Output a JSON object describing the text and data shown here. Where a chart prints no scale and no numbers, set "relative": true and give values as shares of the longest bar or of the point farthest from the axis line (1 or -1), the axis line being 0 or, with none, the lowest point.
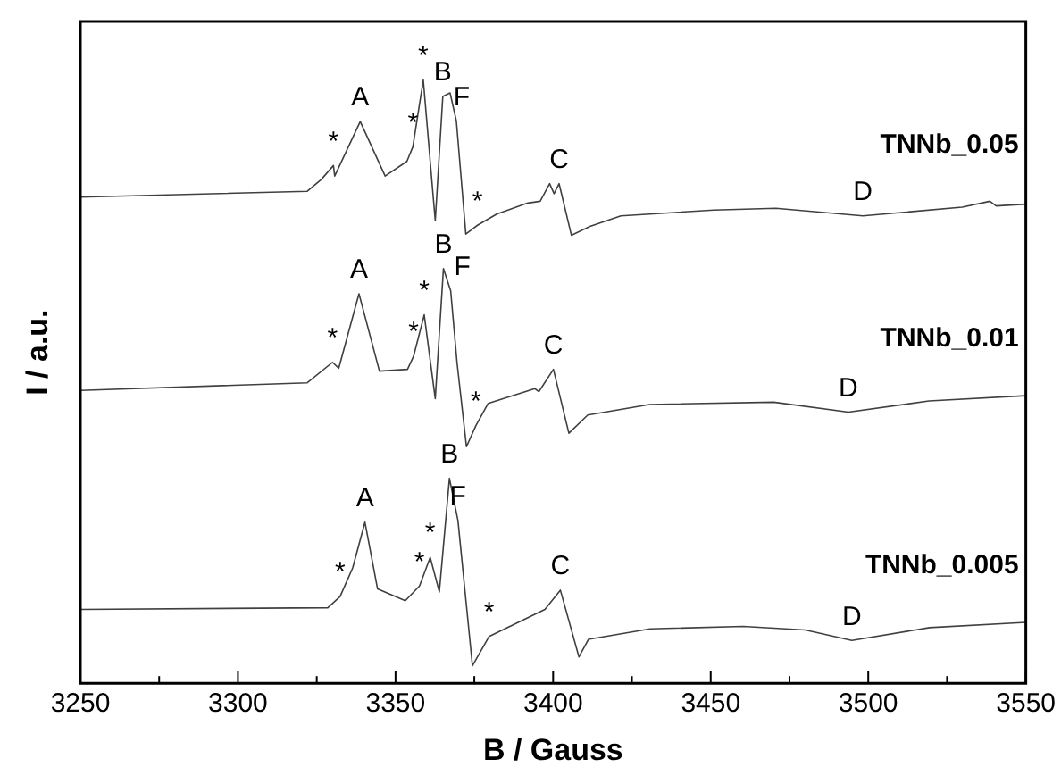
{
  "chart_data": {
    "type": "line",
    "relative": true,
    "xlabel": "B / Gauss",
    "ylabel": "I / a.u.",
    "xlim": [
      3250,
      3550
    ],
    "xticks": [
      3250,
      {
        "value": 3275,
        "label": null
      },
      3300,
      {
        "value": 3325,
        "label": null
      },
      3350,
      {
        "value": 3375,
        "label": null
      },
      3400,
      {
        "value": 3425,
        "label": null
      },
      3450,
      {
        "value": 3475,
        "label": null
      },
      3500,
      {
        "value": 3525,
        "label": null
      },
      3550
    ],
    "grid": false,
    "legend": false,
    "marker": "none",
    "line_style": "solid",
    "series": [
      {
        "name": "TNNb_0.05",
        "color": "#404040",
        "x": [
          3250,
          3322,
          3326.4,
          3330.3,
          3330.7,
          3338.8,
          3346.7,
          3353.6,
          3355.5,
          3358.8,
          3362.6,
          3365,
          3367.3,
          3369.3,
          3372.3,
          3376,
          3382.1,
          3392,
          3395.9,
          3398.9,
          3400.3,
          3401.9,
          3405.8,
          3411.7,
          3421.5,
          3451,
          3470.7,
          3498.3,
          3529.8,
          3538.6,
          3540.6,
          3550
        ],
        "values": [
          0.8,
          0.81,
          0.83,
          0.854,
          0.836,
          0.929,
          0.836,
          0.861,
          0.886,
          1.0,
          0.76,
          0.972,
          0.978,
          0.93,
          0.737,
          0.752,
          0.771,
          0.79,
          0.793,
          0.823,
          0.806,
          0.823,
          0.735,
          0.75,
          0.768,
          0.778,
          0.781,
          0.768,
          0.783,
          0.793,
          0.785,
          0.788
        ]
      },
      {
        "name": "TNNb_0.01",
        "color": "#404040",
        "x": [
          3250,
          3322,
          3330,
          3332,
          3338.4,
          3344.9,
          3353.8,
          3355.7,
          3359.1,
          3362.6,
          3365.2,
          3367.5,
          3369.5,
          3372.5,
          3375.5,
          3379.4,
          3394.2,
          3395.5,
          3400.1,
          3405,
          3411,
          3430.6,
          3470,
          3493.7,
          3519.3,
          3550
        ],
        "values": [
          0.47,
          0.483,
          0.518,
          0.508,
          0.635,
          0.503,
          0.506,
          0.528,
          0.599,
          0.456,
          0.678,
          0.64,
          0.518,
          0.374,
          0.41,
          0.448,
          0.473,
          0.468,
          0.506,
          0.397,
          0.428,
          0.446,
          0.45,
          0.433,
          0.452,
          0.461
        ]
      },
      {
        "name": "TNNb_0.005",
        "color": "#404040",
        "x": [
          3250,
          3328.5,
          3332.4,
          3336.4,
          3340.3,
          3344.3,
          3353.1,
          3357.6,
          3361,
          3363.9,
          3367.1,
          3369.8,
          3374.4,
          3379.7,
          3397.4,
          3402.3,
          3408.2,
          3411.2,
          3430.8,
          3460.3,
          3480,
          3494.8,
          3519.4,
          3550
        ],
        "values": [
          0.096,
          0.099,
          0.118,
          0.167,
          0.245,
          0.131,
          0.111,
          0.136,
          0.185,
          0.126,
          0.32,
          0.248,
          0.0,
          0.05,
          0.096,
          0.129,
          0.015,
          0.045,
          0.063,
          0.067,
          0.061,
          0.043,
          0.065,
          0.074
        ]
      }
    ],
    "annotations": [
      {
        "text": "A",
        "x": 3338.8,
        "y": 0.929
      },
      {
        "text": "*",
        "x": 3330.3,
        "y": 0.854
      },
      {
        "text": "*",
        "x": 3355.5,
        "y": 0.886
      },
      {
        "text": "*",
        "x": 3358.8,
        "y": 1.0
      },
      {
        "text": "B",
        "x": 3365,
        "y": 0.972
      },
      {
        "text": "F",
        "x": 3369.3,
        "y": 0.93
      },
      {
        "text": "*",
        "x": 3376,
        "y": 0.752
      },
      {
        "text": "C",
        "x": 3401.9,
        "y": 0.823
      },
      {
        "text": "D",
        "x": 3498.3,
        "y": 0.768
      },
      {
        "text": "A",
        "x": 3338.4,
        "y": 0.635
      },
      {
        "text": "*",
        "x": 3330,
        "y": 0.518
      },
      {
        "text": "*",
        "x": 3355.7,
        "y": 0.528
      },
      {
        "text": "*",
        "x": 3359.1,
        "y": 0.599
      },
      {
        "text": "B",
        "x": 3365.2,
        "y": 0.678
      },
      {
        "text": "F",
        "x": 3367.5,
        "y": 0.64
      },
      {
        "text": "*",
        "x": 3375.5,
        "y": 0.41
      },
      {
        "text": "C",
        "x": 3400.1,
        "y": 0.506
      },
      {
        "text": "D",
        "x": 3493.7,
        "y": 0.433
      },
      {
        "text": "A",
        "x": 3340.3,
        "y": 0.245
      },
      {
        "text": "*",
        "x": 3332.4,
        "y": 0.118
      },
      {
        "text": "*",
        "x": 3357.6,
        "y": 0.136
      },
      {
        "text": "*",
        "x": 3361,
        "y": 0.185
      },
      {
        "text": "B",
        "x": 3367.1,
        "y": 0.32
      },
      {
        "text": "F",
        "x": 3369.8,
        "y": 0.248
      },
      {
        "text": "*",
        "x": 3379.7,
        "y": 0.05
      },
      {
        "text": "C",
        "x": 3402.3,
        "y": 0.129
      },
      {
        "text": "D",
        "x": 3494.8,
        "y": 0.043
      }
    ]
  }
}
